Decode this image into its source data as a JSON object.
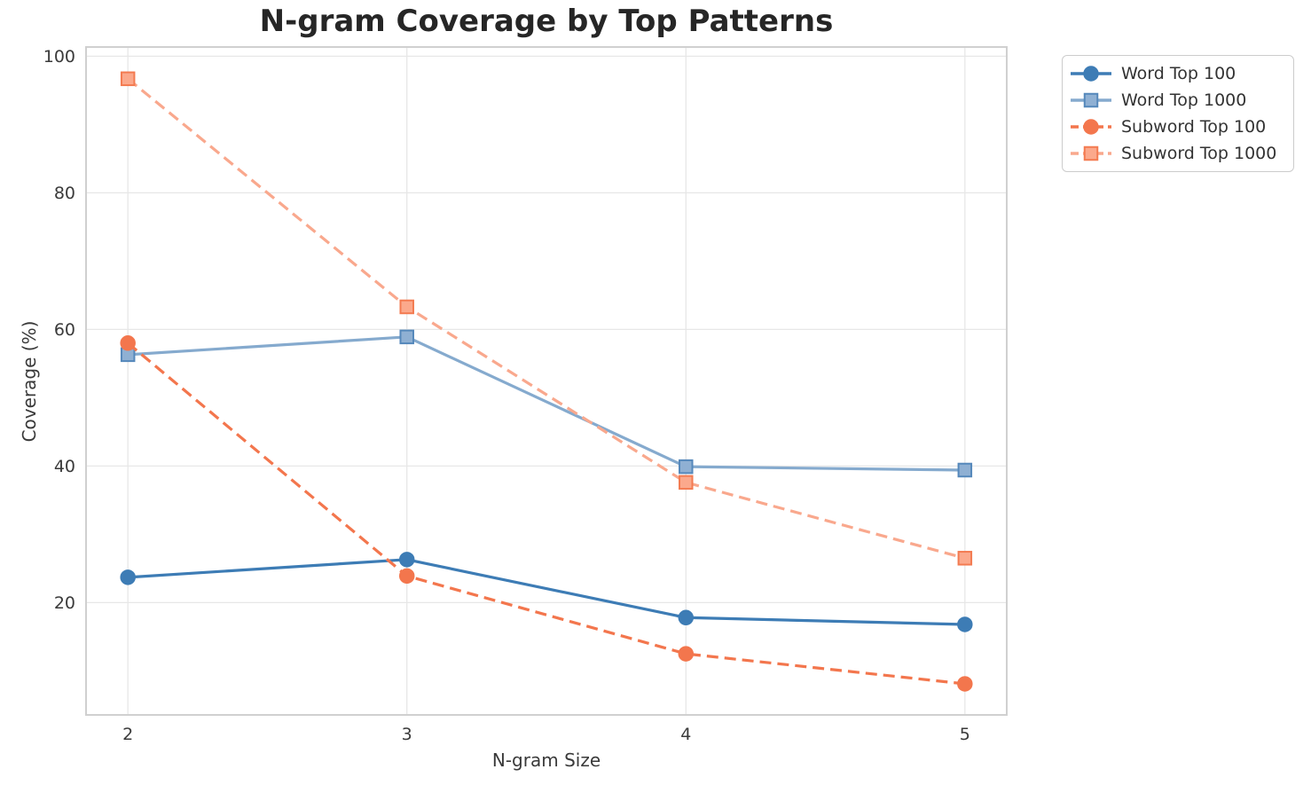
{
  "page": {
    "background": "#ffffff"
  },
  "chart_data": {
    "type": "line",
    "title": "N-gram Coverage by Top Patterns",
    "xlabel": "N-gram Size",
    "ylabel": "Coverage (%)",
    "x": [
      2,
      3,
      4,
      5
    ],
    "xticks": [
      "2",
      "3",
      "4",
      "5"
    ],
    "yticks": [
      "20",
      "40",
      "60",
      "80",
      "100"
    ],
    "ytick_values": [
      20,
      40,
      60,
      80,
      100
    ],
    "xlim": [
      1.85,
      5.15
    ],
    "ylim": [
      3.55,
      101.35
    ],
    "grid": true,
    "legend_position": "outside-top-right",
    "series": [
      {
        "name": "Word Top 100",
        "values": [
          23.7,
          26.3,
          17.8,
          16.8
        ],
        "color": "#3D7CB5",
        "line_style": "solid",
        "marker": "circle",
        "marker_fill": "#3D7CB5",
        "marker_edge": "#3D7CB5"
      },
      {
        "name": "Word Top 1000",
        "values": [
          56.3,
          58.9,
          39.9,
          39.4
        ],
        "color": "#85AACE",
        "line_style": "solid",
        "marker": "square",
        "marker_fill": "#8FB0D3",
        "marker_edge": "#5588BB"
      },
      {
        "name": "Subword Top 100",
        "values": [
          58.0,
          23.9,
          12.5,
          8.1
        ],
        "color": "#F3764D",
        "line_style": "dashed",
        "marker": "circle",
        "marker_fill": "#F3764D",
        "marker_edge": "#F3764D"
      },
      {
        "name": "Subword Top 1000",
        "values": [
          96.7,
          63.3,
          37.6,
          26.5
        ],
        "color": "#F9A88D",
        "line_style": "dashed",
        "marker": "square",
        "marker_fill": "#FBA98C",
        "marker_edge": "#F37B51"
      }
    ],
    "colors": {
      "grid": "#E7E7E7",
      "spine": "#D0D0D0",
      "tick_label": "#3A3A3A",
      "title": "#262626",
      "legend_border": "#CCCCCC",
      "legend_text": "#333333"
    }
  }
}
